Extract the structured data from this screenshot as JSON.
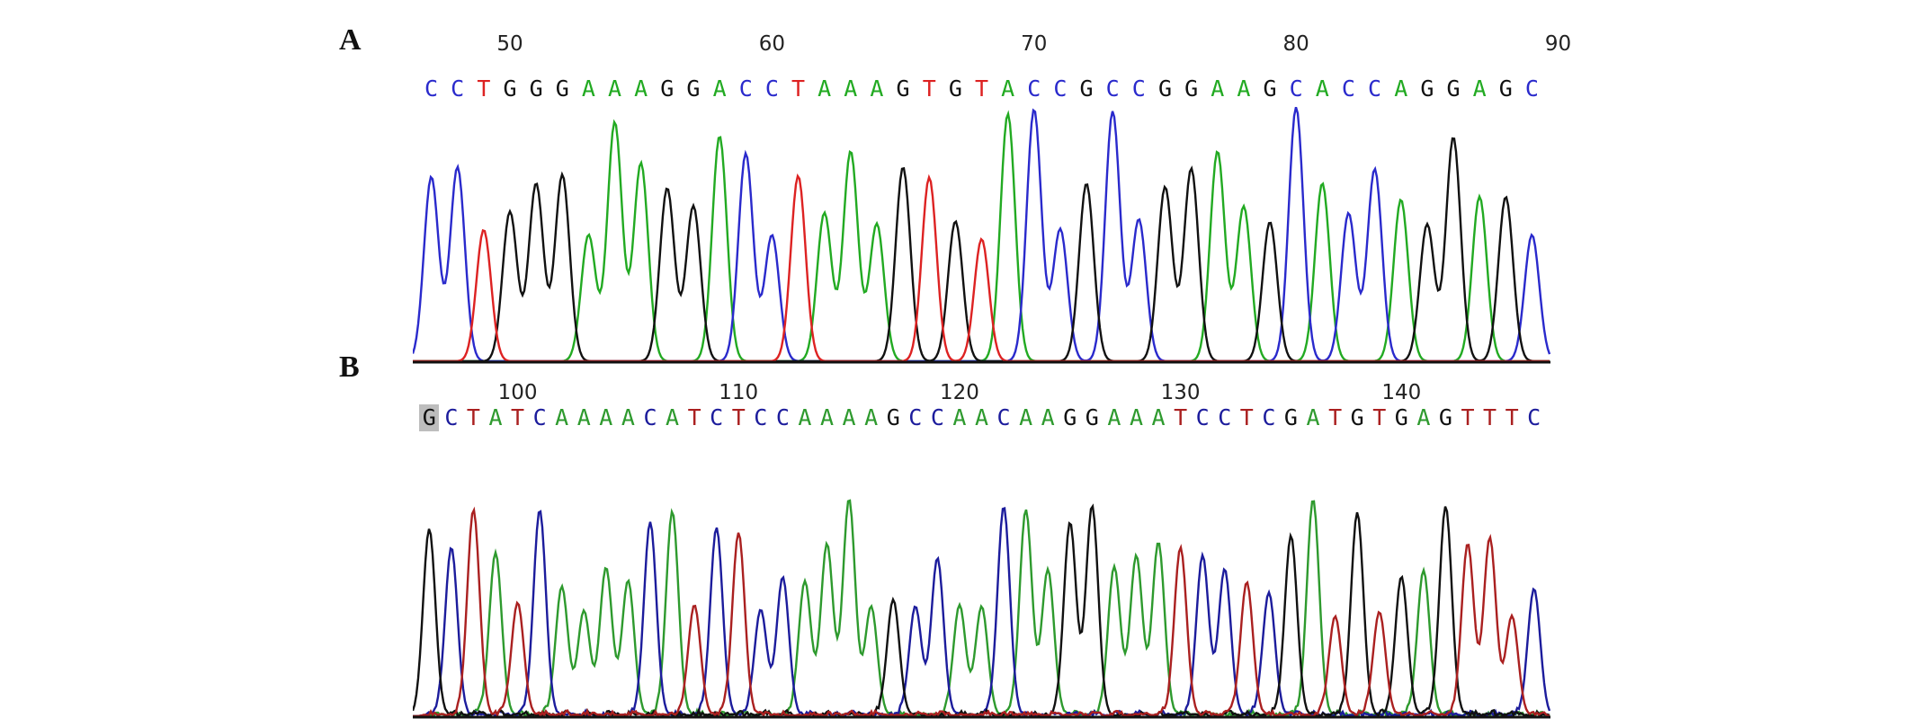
{
  "panels": [
    {
      "id": "A",
      "label": "A",
      "first_position": 47,
      "ruler": [
        "50",
        "60",
        "70",
        "80",
        "90"
      ],
      "ruler_positions": [
        50,
        60,
        70,
        80,
        90
      ],
      "sequence": "CCTGGGAAAGGACCTAAAGTGTACCGCCGGAAGCACCAGGAGC",
      "highlight_index": -1,
      "colors": {
        "A": "#22aa22",
        "C": "#2a2acc",
        "G": "#111111",
        "T": "#dd2222"
      }
    },
    {
      "id": "B",
      "label": "B",
      "first_position": 96,
      "ruler": [
        "100",
        "110",
        "120",
        "130",
        "140"
      ],
      "ruler_positions": [
        100,
        110,
        120,
        130,
        140
      ],
      "sequence": "GCTATCAAAACATCTCCAAAAGCCAACAAGGAAATCCTCGATGTGAGTTTC",
      "highlight_index": 0,
      "colors": {
        "A": "#2e9a2e",
        "C": "#1c1c9c",
        "G": "#111111",
        "T": "#aa2020"
      }
    }
  ]
}
